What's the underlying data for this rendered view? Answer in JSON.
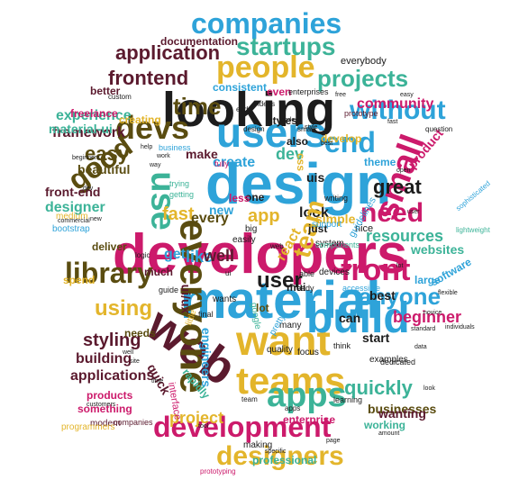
{
  "colors": {
    "pink": "#cc1a6b",
    "blue": "#2ea3d9",
    "black": "#1c1c1c",
    "gold": "#e3b52b",
    "olive": "#5a4c10",
    "green": "#3cb398",
    "maroon": "#5b1a2e"
  },
  "words": [
    {
      "text": "developers",
      "color": "pink"
    },
    {
      "text": "design",
      "color": "blue"
    },
    {
      "text": "material",
      "color": "blue"
    },
    {
      "text": "looking",
      "color": "black"
    },
    {
      "text": "web",
      "color": "maroon"
    },
    {
      "text": "want",
      "color": "gold"
    },
    {
      "text": "build",
      "color": "blue"
    },
    {
      "text": "teams",
      "color": "gold"
    },
    {
      "text": "users",
      "color": "blue"
    },
    {
      "text": "everyone",
      "color": "olive"
    },
    {
      "text": "development",
      "color": "pink"
    },
    {
      "text": "people",
      "color": "gold"
    },
    {
      "text": "apps",
      "color": "green"
    },
    {
      "text": "front",
      "color": "pink"
    },
    {
      "text": "devs",
      "color": "olive"
    },
    {
      "text": "companies",
      "color": "blue"
    },
    {
      "text": "designers",
      "color": "gold"
    },
    {
      "text": "small",
      "color": "pink"
    },
    {
      "text": "library",
      "color": "olive"
    },
    {
      "text": "startups",
      "color": "green"
    },
    {
      "text": "time",
      "color": "olive"
    },
    {
      "text": "end",
      "color": "blue"
    },
    {
      "text": "need",
      "color": "pink"
    },
    {
      "text": "good",
      "color": "olive"
    },
    {
      "text": "use",
      "color": "green"
    },
    {
      "text": "without",
      "color": "blue"
    },
    {
      "text": "projects",
      "color": "green"
    },
    {
      "text": "anyone",
      "color": "blue"
    },
    {
      "text": "quickly",
      "color": "green"
    },
    {
      "text": "using",
      "color": "gold"
    },
    {
      "text": "application",
      "color": "maroon"
    },
    {
      "text": "frontend",
      "color": "maroon"
    },
    {
      "text": "easy",
      "color": "olive"
    },
    {
      "text": "styling",
      "color": "maroon"
    },
    {
      "text": "user",
      "color": "black"
    },
    {
      "text": "great",
      "color": "black"
    },
    {
      "text": "beginner",
      "color": "pink"
    },
    {
      "text": "businesses",
      "color": "olive"
    },
    {
      "text": "project",
      "color": "gold"
    },
    {
      "text": "resources",
      "color": "green"
    },
    {
      "text": "fast",
      "color": "gold"
    },
    {
      "text": "app",
      "color": "gold"
    },
    {
      "text": "create",
      "color": "blue"
    },
    {
      "text": "dev",
      "color": "green"
    },
    {
      "text": "every",
      "color": "olive"
    },
    {
      "text": "look",
      "color": "black"
    },
    {
      "text": "get",
      "color": "blue"
    },
    {
      "text": "like",
      "color": "blue"
    },
    {
      "text": "new",
      "color": "blue"
    },
    {
      "text": "well",
      "color": "maroon"
    },
    {
      "text": "community",
      "color": "pink"
    },
    {
      "text": "simple",
      "color": "gold"
    },
    {
      "text": "building",
      "color": "maroon"
    },
    {
      "text": "applications",
      "color": "maroon"
    },
    {
      "text": "framework",
      "color": "maroon"
    },
    {
      "text": "experience",
      "color": "green"
    },
    {
      "text": "designer",
      "color": "green"
    },
    {
      "text": "front-end",
      "color": "maroon"
    },
    {
      "text": "engineers",
      "color": "blue"
    },
    {
      "text": "material-ui",
      "color": "green"
    },
    {
      "text": "beautiful",
      "color": "olive"
    },
    {
      "text": "make",
      "color": "maroon"
    },
    {
      "text": "websites",
      "color": "green"
    },
    {
      "text": "wanting",
      "color": "maroon"
    },
    {
      "text": "documentation",
      "color": "maroon"
    },
    {
      "text": "consistent",
      "color": "blue"
    },
    {
      "text": "best",
      "color": "black"
    },
    {
      "text": "ui/ux",
      "color": "maroon"
    },
    {
      "text": "quick",
      "color": "maroon"
    },
    {
      "text": "professional",
      "color": "green"
    },
    {
      "text": "enterprise",
      "color": "pink"
    },
    {
      "text": "products",
      "color": "pink"
    },
    {
      "text": "software",
      "color": "blue"
    },
    {
      "text": "large",
      "color": "blue"
    },
    {
      "text": "start",
      "color": "black"
    },
    {
      "text": "can",
      "color": "black"
    },
    {
      "text": "working",
      "color": "green"
    },
    {
      "text": "something",
      "color": "pink"
    },
    {
      "text": "creating",
      "color": "gold"
    },
    {
      "text": "freelance",
      "color": "pink"
    },
    {
      "text": "better",
      "color": "maroon"
    },
    {
      "text": "develop",
      "color": "gold"
    },
    {
      "text": "product",
      "color": "pink"
    },
    {
      "text": "nice",
      "color": "black"
    },
    {
      "text": "theme",
      "color": "blue"
    },
    {
      "text": "css",
      "color": "gold"
    },
    {
      "text": "uis",
      "color": "black"
    },
    {
      "text": "one",
      "color": "black"
    },
    {
      "text": "less",
      "color": "pink"
    },
    {
      "text": "even",
      "color": "pink"
    },
    {
      "text": "also",
      "color": "black"
    },
    {
      "text": "needs",
      "color": "olive"
    },
    {
      "text": "everybody",
      "color": "black"
    },
    {
      "text": "mui",
      "color": "black"
    },
    {
      "text": "deliver",
      "color": "olive"
    },
    {
      "text": "spend",
      "color": "gold"
    },
    {
      "text": "modern",
      "color": "maroon"
    },
    {
      "text": "medium",
      "color": "gold"
    },
    {
      "text": "bootstrap",
      "color": "blue"
    },
    {
      "text": "react",
      "color": "gold"
    },
    {
      "text": "styles",
      "color": "black"
    },
    {
      "text": "examples",
      "color": "black"
    },
    {
      "text": "rapidly",
      "color": "green"
    },
    {
      "text": "team",
      "color": "gold"
    },
    {
      "text": "lot",
      "color": "olive"
    },
    {
      "text": "making",
      "color": "black"
    },
    {
      "text": "much",
      "color": "maroon"
    },
    {
      "text": "wants",
      "color": "black"
    },
    {
      "text": "just",
      "color": "black"
    },
    {
      "text": "easily",
      "color": "black"
    },
    {
      "text": "interface",
      "color": "pink"
    },
    {
      "text": "programmers",
      "color": "gold"
    },
    {
      "text": "prototyping",
      "color": "pink"
    },
    {
      "text": "companies",
      "color": "maroon"
    },
    {
      "text": "system",
      "color": "black"
    },
    {
      "text": "components",
      "color": "green"
    },
    {
      "text": "question",
      "color": "black"
    },
    {
      "text": "prototype",
      "color": "maroon"
    },
    {
      "text": "business",
      "color": "blue"
    },
    {
      "text": "guide",
      "color": "black"
    },
    {
      "text": "learning",
      "color": "black"
    },
    {
      "text": "support",
      "color": "blue"
    },
    {
      "text": "guidelines",
      "color": "blue"
    },
    {
      "text": "think",
      "color": "black"
    },
    {
      "text": "google",
      "color": "green"
    },
    {
      "text": "focus",
      "color": "black"
    },
    {
      "text": "many",
      "color": "black"
    },
    {
      "text": "quality",
      "color": "black"
    },
    {
      "text": "accessible",
      "color": "blue"
    },
    {
      "text": "sophisticated",
      "color": "blue"
    },
    {
      "text": "lightweight",
      "color": "green"
    },
    {
      "text": "devices",
      "color": "black"
    },
    {
      "text": "dedicated",
      "color": "black"
    },
    {
      "text": "little",
      "color": "gold"
    },
    {
      "text": "pretty",
      "color": "blue"
    },
    {
      "text": "writing",
      "color": "black"
    },
    {
      "text": "trying",
      "color": "green"
    },
    {
      "text": "getting",
      "color": "green"
    },
    {
      "text": "big",
      "color": "black"
    },
    {
      "text": "ready",
      "color": "black"
    },
    {
      "text": "final",
      "color": "black"
    },
    {
      "text": "fully",
      "color": "pink"
    },
    {
      "text": "enterprises",
      "color": "black"
    },
    {
      "text": "ideas",
      "color": "black"
    },
    {
      "text": "able",
      "color": "black"
    },
    {
      "text": "commercial",
      "color": "black"
    },
    {
      "text": "individuals",
      "color": "black"
    },
    {
      "text": "beginners",
      "color": "black"
    },
    {
      "text": "customers",
      "color": "black"
    },
    {
      "text": "specific",
      "color": "black"
    },
    {
      "text": "standard",
      "color": "black"
    },
    {
      "text": "novice",
      "color": "black"
    },
    {
      "text": "flexible",
      "color": "black"
    },
    {
      "text": "logic",
      "color": "black"
    },
    {
      "text": "custom",
      "color": "black"
    },
    {
      "text": "amount",
      "color": "black"
    },
    {
      "text": "design",
      "color": "black"
    },
    {
      "text": "web",
      "color": "black"
    },
    {
      "text": "team",
      "color": "black"
    },
    {
      "text": "apps",
      "color": "black"
    },
    {
      "text": "small",
      "color": "black"
    },
    {
      "text": "ui",
      "color": "black"
    },
    {
      "text": "end",
      "color": "black"
    },
    {
      "text": "code",
      "color": "black"
    },
    {
      "text": "free",
      "color": "black"
    },
    {
      "text": "open",
      "color": "black"
    },
    {
      "text": "user",
      "color": "black"
    },
    {
      "text": "data",
      "color": "black"
    },
    {
      "text": "help",
      "color": "black"
    },
    {
      "text": "work",
      "color": "black"
    },
    {
      "text": "way",
      "color": "black"
    },
    {
      "text": "well",
      "color": "black"
    },
    {
      "text": "site",
      "color": "black"
    },
    {
      "text": "tool",
      "color": "black"
    },
    {
      "text": "page",
      "color": "black"
    },
    {
      "text": "fast",
      "color": "black"
    },
    {
      "text": "easy",
      "color": "black"
    },
    {
      "text": "dev",
      "color": "black"
    },
    {
      "text": "new",
      "color": "black"
    },
    {
      "text": "look",
      "color": "black"
    },
    {
      "text": "style",
      "color": "black"
    },
    {
      "text": "best",
      "color": "black"
    },
    {
      "text": "lot",
      "color": "black"
    },
    {
      "text": "time",
      "color": "black"
    }
  ]
}
